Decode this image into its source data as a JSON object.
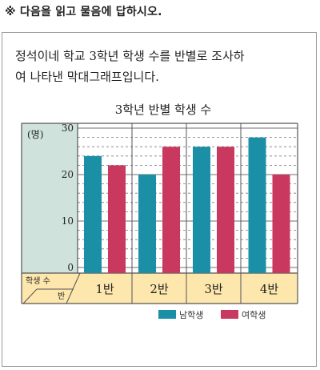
{
  "instruction": "※ 다음을 읽고 물음에 답하시오.",
  "question": {
    "line1": "정석이네 학교 3학년 학생 수를 반별로 조사하",
    "line2": "여 나타낸 막대그래프입니다."
  },
  "chart_data": {
    "type": "bar",
    "title": "3학년 반별 학생 수",
    "ylabel": "(명)",
    "corner_top": "학생 수",
    "corner_bottom": "반",
    "categories": [
      "1반",
      "2반",
      "3반",
      "4반"
    ],
    "ylim": [
      0,
      30
    ],
    "yticks": [
      0,
      10,
      20,
      30
    ],
    "series": [
      {
        "name": "남학생",
        "color": "#1a8fa6",
        "values": [
          24,
          20,
          26,
          28
        ]
      },
      {
        "name": "여학생",
        "color": "#c9395f",
        "values": [
          22,
          26,
          26,
          20
        ]
      }
    ],
    "grid": true,
    "legend": "bottom-right"
  },
  "colors": {
    "axis_panel": "#cfe3dc",
    "category_panel": "#fde7ad",
    "grid": "#7b7b7b"
  }
}
